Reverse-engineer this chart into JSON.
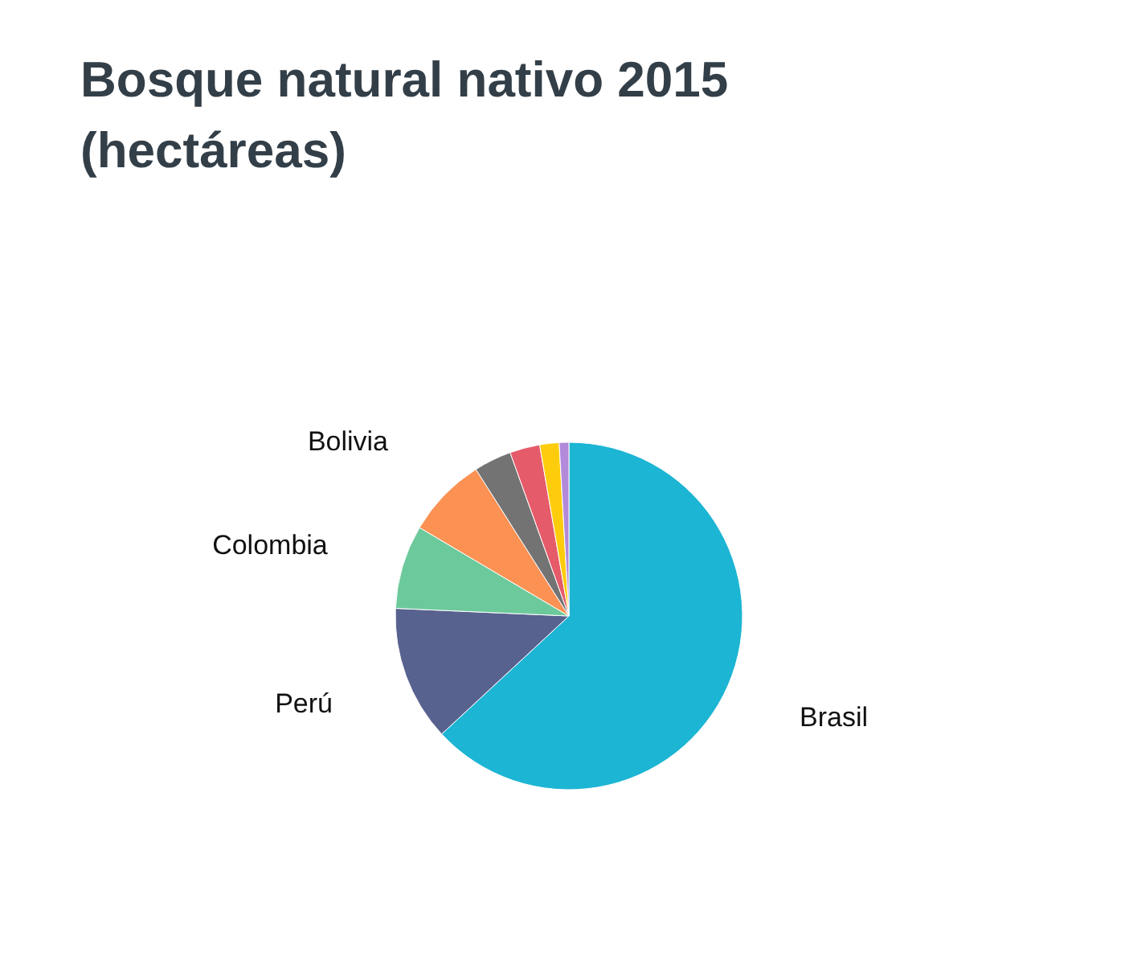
{
  "chart_data": {
    "type": "pie",
    "title": "Bosque natural nativo 2015 (hectáreas)",
    "categories": [
      "Brasil",
      "Perú",
      "Colombia",
      "Bolivia",
      null,
      null,
      null,
      null
    ],
    "values": [
      63.1,
      12.6,
      7.8,
      7.5,
      3.5,
      2.8,
      1.8,
      0.9
    ],
    "colors": [
      "#1db5d4",
      "#58628f",
      "#6cc99b",
      "#fb9153",
      "#737373",
      "#e55b6a",
      "#fdcc0d",
      "#b28ad9"
    ]
  }
}
